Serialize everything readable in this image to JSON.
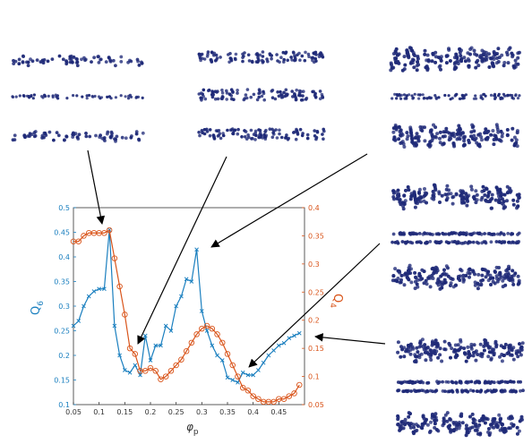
{
  "colors": {
    "q6": "#1a7fbf",
    "q4": "#d9541a",
    "snapshot": "#1f2a78",
    "arrow": "#000000",
    "axis": "#333333"
  },
  "snapshot_panels": [
    {
      "name": "snapshot-group-1",
      "rows": [
        "twisted-ribbon",
        "flat-line",
        "twisted-ribbon"
      ]
    },
    {
      "name": "snapshot-group-2",
      "rows": [
        "disordered-slab",
        "disordered-slab",
        "disordered-slab"
      ]
    },
    {
      "name": "snapshot-group-3",
      "rows": [
        "dense-slab",
        "bilayer-line",
        "dense-slab"
      ]
    },
    {
      "name": "snapshot-group-4",
      "rows": [
        "dense-slab",
        "bilayer-slab",
        "dense-slab"
      ]
    },
    {
      "name": "snapshot-group-5",
      "rows": [
        "dense-slab",
        "bilayer-slab",
        "dense-slab"
      ]
    }
  ],
  "chart_data": {
    "type": "line",
    "xlabel": "φ",
    "xlabel_sub": "p",
    "ylabel_left": "Q",
    "ylabel_left_sub": "6",
    "ylabel_right": "Q",
    "ylabel_right_sub": "4",
    "xlim": [
      0.05,
      0.5
    ],
    "ylim_left": [
      0.1,
      0.5
    ],
    "ylim_right": [
      0.05,
      0.4
    ],
    "x_ticks": [
      "0.05",
      "0.1",
      "0.15",
      "0.2",
      "0.25",
      "0.3",
      "0.35",
      "0.4",
      "0.45"
    ],
    "y_left_ticks": [
      "0.1",
      "0.15",
      "0.2",
      "0.25",
      "0.3",
      "0.35",
      "0.4",
      "0.45",
      "0.5"
    ],
    "y_right_ticks": [
      "0.05",
      "0.1",
      "0.15",
      "0.2",
      "0.25",
      "0.3",
      "0.35",
      "0.4"
    ],
    "series": [
      {
        "axis": "left",
        "marker": "x",
        "x": [
          0.05,
          0.06,
          0.07,
          0.08,
          0.09,
          0.1,
          0.11,
          0.12,
          0.13,
          0.14,
          0.15,
          0.16,
          0.17,
          0.18,
          0.19,
          0.2,
          0.21,
          0.22,
          0.23,
          0.24,
          0.25,
          0.26,
          0.27,
          0.28,
          0.29,
          0.3,
          0.31,
          0.32,
          0.33,
          0.34,
          0.35,
          0.36,
          0.37,
          0.38,
          0.39,
          0.4,
          0.41,
          0.42,
          0.43,
          0.44,
          0.45,
          0.46,
          0.47,
          0.48,
          0.49
        ],
        "values": [
          0.26,
          0.27,
          0.3,
          0.32,
          0.33,
          0.335,
          0.335,
          0.455,
          0.26,
          0.2,
          0.17,
          0.165,
          0.18,
          0.16,
          0.24,
          0.19,
          0.22,
          0.22,
          0.26,
          0.25,
          0.3,
          0.32,
          0.355,
          0.35,
          0.415,
          0.29,
          0.25,
          0.22,
          0.2,
          0.19,
          0.155,
          0.15,
          0.145,
          0.165,
          0.16,
          0.16,
          0.17,
          0.185,
          0.2,
          0.21,
          0.22,
          0.225,
          0.235,
          0.24,
          0.245
        ]
      },
      {
        "axis": "right",
        "marker": "o",
        "x": [
          0.05,
          0.06,
          0.07,
          0.08,
          0.09,
          0.1,
          0.11,
          0.12,
          0.13,
          0.14,
          0.15,
          0.16,
          0.17,
          0.18,
          0.19,
          0.2,
          0.21,
          0.22,
          0.23,
          0.24,
          0.25,
          0.26,
          0.27,
          0.28,
          0.29,
          0.3,
          0.31,
          0.32,
          0.33,
          0.34,
          0.35,
          0.36,
          0.37,
          0.38,
          0.39,
          0.4,
          0.41,
          0.42,
          0.43,
          0.44,
          0.45,
          0.46,
          0.47,
          0.48,
          0.49
        ],
        "values": [
          0.34,
          0.34,
          0.35,
          0.355,
          0.355,
          0.355,
          0.355,
          0.36,
          0.31,
          0.26,
          0.21,
          0.15,
          0.14,
          0.11,
          0.11,
          0.115,
          0.11,
          0.095,
          0.1,
          0.11,
          0.12,
          0.13,
          0.145,
          0.16,
          0.175,
          0.185,
          0.19,
          0.185,
          0.175,
          0.16,
          0.14,
          0.12,
          0.1,
          0.08,
          0.075,
          0.065,
          0.06,
          0.055,
          0.055,
          0.055,
          0.06,
          0.06,
          0.065,
          0.07,
          0.085
        ]
      }
    ]
  }
}
